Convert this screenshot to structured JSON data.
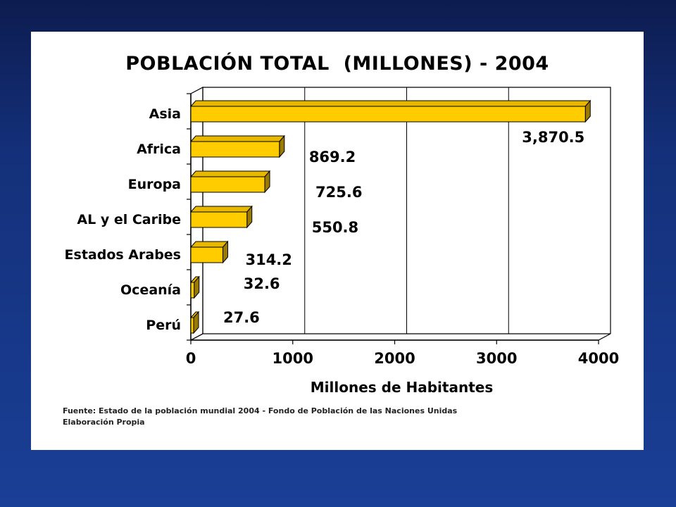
{
  "chart_data": {
    "type": "bar",
    "orientation": "horizontal",
    "title": "POBLACIÓN TOTAL  (MILLONES) - 2004",
    "xlabel": "Millones de Habitantes",
    "ylabel": "",
    "xlim": [
      0,
      4000
    ],
    "xticks": [
      0,
      1000,
      2000,
      3000,
      4000
    ],
    "grid": true,
    "categories": [
      "Asia",
      "Africa",
      "Europa",
      "AL y el Caribe",
      "Estados Arabes",
      "Oceanía",
      "Perú"
    ],
    "values": [
      3870.5,
      869.2,
      725.6,
      550.8,
      314.2,
      32.6,
      27.6
    ],
    "data_labels": [
      "3,870.5",
      "869.2",
      "725.6",
      "550.8",
      "314.2",
      "32.6",
      "27.6"
    ],
    "colors": {
      "bar_front": "#FFCC00",
      "bar_top": "#E8B800",
      "bar_side": "#9A7A00"
    }
  },
  "source": {
    "line1": "Fuente: Estado de la población mundial 2004 - Fondo de Población de las Naciones Unidas",
    "line2": "Elaboración Propia"
  }
}
